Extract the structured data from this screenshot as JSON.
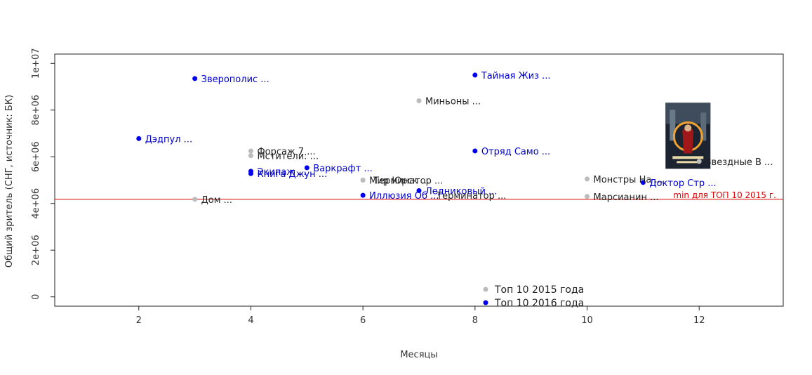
{
  "chart_data": {
    "type": "scatter",
    "title": "",
    "xlabel": "Месяцы",
    "ylabel": "Общий зритель (СНГ, источник: БК)",
    "xlim": [
      0.5,
      13.5
    ],
    "ylim": [
      -400000,
      10400000
    ],
    "x_ticks": [
      2,
      4,
      6,
      8,
      10,
      12
    ],
    "y_ticks": [
      {
        "value": 0,
        "label": "0"
      },
      {
        "value": 2000000,
        "label": "2e+06"
      },
      {
        "value": 4000000,
        "label": "4e+06"
      },
      {
        "value": 6000000,
        "label": "6e+06"
      },
      {
        "value": 8000000,
        "label": "8e+06"
      },
      {
        "value": 10000000,
        "label": "1e+07"
      }
    ],
    "grid": false,
    "colors": {
      "2015": "#bbbbbb",
      "2016": "#0000ee",
      "ref_line": "#dd0000"
    },
    "series": [
      {
        "name": "Топ 10 2015 года",
        "color": "#bbbbbb",
        "label_color": "#222222",
        "points": [
          {
            "x": 3,
            "y": 4180000,
            "label": "Дом ..."
          },
          {
            "x": 4,
            "y": 6250000,
            "label": "Форсаж 7 ..."
          },
          {
            "x": 4,
            "y": 6050000,
            "label": "Мстители: ..."
          },
          {
            "x": 6,
            "y": 5000000,
            "label": "Мир Юрск ..."
          },
          {
            "x": 7,
            "y": 8400000,
            "label": "Миньоны ..."
          },
          {
            "x": 10,
            "y": 5050000,
            "label": "Монстры На ..."
          },
          {
            "x": 10,
            "y": 4300000,
            "label": "Марсианин ..."
          },
          {
            "x": 12,
            "y": 5800000,
            "label": "Звездные В ..."
          }
        ]
      },
      {
        "name": "Топ 10 2016 года",
        "color": "#0000ee",
        "label_color": "#0000cc",
        "points": [
          {
            "x": 2,
            "y": 6780000,
            "label": "Дэдпул ..."
          },
          {
            "x": 3,
            "y": 9350000,
            "label": "Зверополис ..."
          },
          {
            "x": 4,
            "y": 5380000,
            "label": "Экипаж ..."
          },
          {
            "x": 4,
            "y": 5280000,
            "label": "Книга Джун ..."
          },
          {
            "x": 5,
            "y": 5530000,
            "label": "Варкрафт ..."
          },
          {
            "x": 6,
            "y": 4350000,
            "label": "Иллюзия Об ..."
          },
          {
            "x": 7,
            "y": 4550000,
            "label": "Ледниковый ..."
          },
          {
            "x": 8,
            "y": 9500000,
            "label": "Тайная Жиз ..."
          },
          {
            "x": 8,
            "y": 6250000,
            "label": "Отряд Само ..."
          },
          {
            "x": 11,
            "y": 4900000,
            "label": "Доктор Стр ..."
          }
        ]
      }
    ],
    "extra_labels": [
      {
        "x": 6,
        "y": 5000000,
        "label": "Терминатор ...",
        "color": "#222222",
        "dx": 6,
        "dy": 0
      },
      {
        "x": 6,
        "y": 4350000,
        "label": "Терминатор ...",
        "color": "#222222",
        "dx": 96,
        "dy": 0
      }
    ],
    "reference_line": {
      "y": 4180000,
      "label": "min для ТОП 10 2015 г.",
      "color": "#dd0000"
    },
    "legend": {
      "placement": "bottom-center",
      "items": [
        {
          "label": "Топ 10 2015 года",
          "color": "#bbbbbb"
        },
        {
          "label": "Топ 10 2016 года",
          "color": "#0000ee"
        }
      ]
    },
    "poster_icon": {
      "name": "doctor-strange-poster-icon",
      "x": 11.8,
      "y": 6900000
    }
  }
}
